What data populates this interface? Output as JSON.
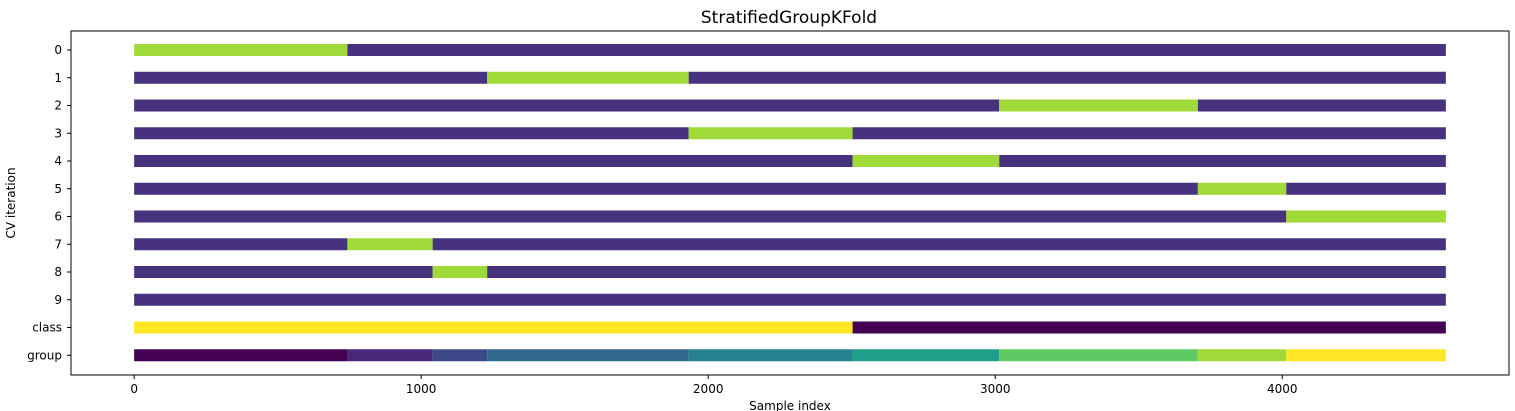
{
  "chart_data": {
    "type": "bar",
    "orientation": "horizontal",
    "title": "StratifiedGroupKFold",
    "xlabel": "Sample index",
    "ylabel": "CV iteration",
    "xlim": [
      -220,
      4790
    ],
    "x_ticks": [
      0,
      1000,
      2000,
      3000,
      4000
    ],
    "x_tick_labels": [
      "0",
      "1000",
      "2000",
      "3000",
      "4000"
    ],
    "y_tick_labels": [
      "0",
      "1",
      "2",
      "3",
      "4",
      "5",
      "6",
      "7",
      "8",
      "9",
      "class",
      "group"
    ],
    "n_samples": 4570,
    "legend": "none",
    "colors": {
      "train": "#46327e",
      "test": "#a0da39",
      "class_0": "#fde725",
      "class_1": "#440154"
    },
    "cv_splits": [
      {
        "name": "0",
        "test": [
          [
            0,
            743
          ]
        ]
      },
      {
        "name": "1",
        "test": [
          [
            1230,
            1932
          ]
        ]
      },
      {
        "name": "2",
        "test": [
          [
            3014,
            3706
          ]
        ]
      },
      {
        "name": "3",
        "test": [
          [
            1932,
            2503
          ]
        ]
      },
      {
        "name": "4",
        "test": [
          [
            2503,
            3014
          ]
        ]
      },
      {
        "name": "5",
        "test": [
          [
            3706,
            4014
          ]
        ]
      },
      {
        "name": "6",
        "test": [
          [
            4014,
            4570
          ]
        ]
      },
      {
        "name": "7",
        "test": [
          [
            743,
            1040
          ]
        ]
      },
      {
        "name": "8",
        "test": [
          [
            1040,
            1230
          ]
        ]
      },
      {
        "name": "9",
        "test": []
      }
    ],
    "class_segments": [
      {
        "start": 0,
        "end": 2503,
        "color": "#fde725"
      },
      {
        "start": 2503,
        "end": 4570,
        "color": "#440154"
      }
    ],
    "group_segments": [
      {
        "start": 0,
        "end": 743,
        "color": "#440154"
      },
      {
        "start": 743,
        "end": 1040,
        "color": "#482878"
      },
      {
        "start": 1040,
        "end": 1230,
        "color": "#3e4989"
      },
      {
        "start": 1230,
        "end": 1932,
        "color": "#31688e"
      },
      {
        "start": 1932,
        "end": 2503,
        "color": "#26828e"
      },
      {
        "start": 2503,
        "end": 3014,
        "color": "#1f9e89"
      },
      {
        "start": 3014,
        "end": 3706,
        "color": "#5ec962"
      },
      {
        "start": 3706,
        "end": 4014,
        "color": "#a0da39"
      },
      {
        "start": 4014,
        "end": 4570,
        "color": "#fde725"
      }
    ]
  }
}
